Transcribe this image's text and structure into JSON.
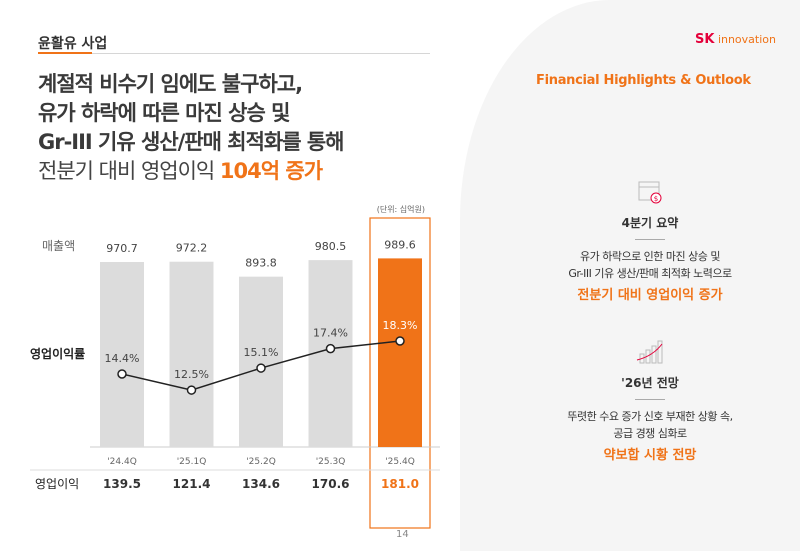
{
  "section": "윤활유 사업",
  "logo": {
    "brand": "SK",
    "name": "innovation"
  },
  "title_lines": [
    "계절적 비수기 임에도 불구하고,",
    "유가 하락에 따른 마진 상승 및",
    "Gr-III 기유 생산/판매 최적화를 통해"
  ],
  "subtitle": {
    "text": "전분기 대비 영업이익 ",
    "highlight": "104억 증가"
  },
  "right": {
    "heading": "Financial Highlights & Outlook",
    "cards": [
      {
        "icon": "calendar-dollar-icon",
        "title": "4분기 요약",
        "lines": [
          "유가 하락으로 인한 마진 상승 및",
          "Gr-III 기유 생산/판매 최적화 노력으로"
        ],
        "highlight": "전분기 대비 영업이익 증가"
      },
      {
        "icon": "growth-chart-icon",
        "title": "'26년 전망",
        "lines": [
          "뚜렷한 수요 증가 신호 부재한 상황 속,",
          "공급 경쟁 심화로"
        ],
        "highlight": "약보합 시황 전망"
      }
    ]
  },
  "page_number": "14",
  "chart_data": {
    "type": "bar",
    "unit": "(단위: 십억원)",
    "categories": [
      "'24.4Q",
      "'25.1Q",
      "'25.2Q",
      "'25.3Q",
      "'25.4Q"
    ],
    "series": [
      {
        "name": "매출액",
        "type": "bar",
        "values": [
          970.7,
          972.2,
          893.8,
          980.5,
          989.6
        ],
        "labels": [
          "970.7",
          "972.2",
          "893.8",
          "980.5",
          "989.6"
        ]
      },
      {
        "name": "영업이익률",
        "type": "line",
        "values": [
          14.4,
          12.5,
          15.1,
          17.4,
          18.3
        ],
        "labels": [
          "14.4%",
          "12.5%",
          "15.1%",
          "17.4%",
          "18.3%"
        ]
      },
      {
        "name": "영업이익",
        "type": "table",
        "values": [
          139.5,
          121.4,
          134.6,
          170.6,
          181.0
        ],
        "labels": [
          "139.5",
          "121.4",
          "134.6",
          "170.6",
          "181.0"
        ]
      }
    ],
    "highlight_index": 4,
    "colors": {
      "bar": "#dcdcdc",
      "highlight": "#f07318",
      "line": "#222222"
    }
  }
}
